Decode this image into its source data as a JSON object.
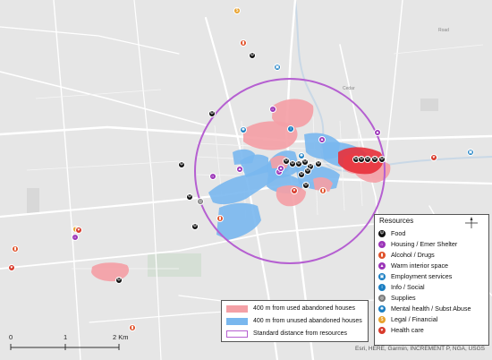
{
  "map": {
    "background": "#e6e6e6",
    "street_color": "#ffffff",
    "water_color": "#c9d8e6",
    "park_color": "#d5dfd5"
  },
  "legend": {
    "title": "Resources",
    "items": [
      {
        "label": "Food",
        "icon": "fork-knife-icon",
        "color": "#111111"
      },
      {
        "label": "Housing / Emer Shelter",
        "icon": "house-icon",
        "color": "#9b35b8"
      },
      {
        "label": "Alcohol / Drugs",
        "icon": "bottle-icon",
        "color": "#e0522b"
      },
      {
        "label": "Warm interior space",
        "icon": "warm-space-icon",
        "color": "#9b35b8"
      },
      {
        "label": "Employment services",
        "icon": "briefcase-icon",
        "color": "#1a7ec2"
      },
      {
        "label": "Info / Social",
        "icon": "info-icon",
        "color": "#1a7ec2"
      },
      {
        "label": "Supplies",
        "icon": "supplies-icon",
        "color": "#777777"
      },
      {
        "label": "Mental health / Subst Abuse",
        "icon": "brain-icon",
        "color": "#1a7ec2"
      },
      {
        "label": "Legal / Financial",
        "icon": "scales-icon",
        "color": "#e8a12b"
      },
      {
        "label": "Health care",
        "icon": "heart-icon",
        "color": "#d83a2b"
      }
    ]
  },
  "layers": [
    {
      "label": "400 m from used abandoned houses",
      "color": "#f4a0a6"
    },
    {
      "label": "400 m from unused abandoned houses",
      "color": "#79b7ee"
    },
    {
      "label": "Standard distance from resources",
      "color": "#b55fd1"
    }
  ],
  "scale": {
    "ticks": [
      "0",
      "1",
      "2 Km"
    ]
  },
  "attribution": "Esri, HERE, Garmin, INCREMENT P, NGA, USGS",
  "resource_markers": [
    {
      "type": "Food"
    },
    {
      "type": "Food"
    },
    {
      "type": "Food"
    },
    {
      "type": "Food"
    },
    {
      "type": "Food"
    },
    {
      "type": "Food"
    },
    {
      "type": "Food"
    },
    {
      "type": "Food"
    },
    {
      "type": "Food"
    },
    {
      "type": "Food"
    },
    {
      "type": "Food"
    },
    {
      "type": "Food"
    },
    {
      "type": "Food"
    },
    {
      "type": "Food"
    },
    {
      "type": "Food"
    },
    {
      "type": "Food"
    },
    {
      "type": "Food"
    },
    {
      "type": "Food"
    },
    {
      "type": "Food"
    },
    {
      "type": "Food"
    },
    {
      "type": "Housing / Emer Shelter"
    },
    {
      "type": "Housing / Emer Shelter"
    },
    {
      "type": "Housing / Emer Shelter"
    },
    {
      "type": "Housing / Emer Shelter"
    },
    {
      "type": "Alcohol / Drugs"
    },
    {
      "type": "Alcohol / Drugs"
    },
    {
      "type": "Alcohol / Drugs"
    },
    {
      "type": "Alcohol / Drugs"
    },
    {
      "type": "Alcohol / Drugs"
    },
    {
      "type": "Warm interior space"
    },
    {
      "type": "Warm interior space"
    },
    {
      "type": "Warm interior space"
    },
    {
      "type": "Warm interior space"
    },
    {
      "type": "Employment services"
    },
    {
      "type": "Employment services"
    },
    {
      "type": "Info / Social"
    },
    {
      "type": "Supplies"
    },
    {
      "type": "Mental health / Subst Abuse"
    },
    {
      "type": "Mental health / Subst Abuse"
    },
    {
      "type": "Legal / Financial"
    },
    {
      "type": "Legal / Financial"
    },
    {
      "type": "Health care"
    },
    {
      "type": "Health care"
    },
    {
      "type": "Health care"
    },
    {
      "type": "Health care"
    }
  ]
}
